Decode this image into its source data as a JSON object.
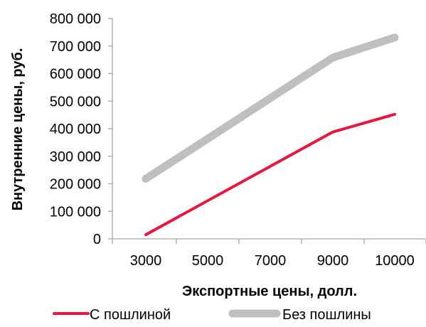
{
  "chart_data": {
    "type": "line",
    "xlabel": "Экспортные цены, долл.",
    "ylabel": "Внутренние цены, руб.",
    "x": [
      3000,
      9000,
      10000
    ],
    "x_ticks": [
      "3000",
      "5000",
      "7000",
      "9000",
      "10000"
    ],
    "y_ticks": [
      "0",
      "100 000",
      "200 000",
      "300 000",
      "400 000",
      "500 000",
      "600 000",
      "700 000",
      "800 000"
    ],
    "ylim": [
      0,
      800000
    ],
    "series": [
      {
        "name": "С пошлиной",
        "values": [
          15000,
          388000,
          452000
        ],
        "color": "#e8173f"
      },
      {
        "name": "Без пошлины",
        "values": [
          218000,
          658000,
          731000
        ],
        "color": "#bfbfbf"
      }
    ],
    "legend_position": "bottom",
    "grid": false
  }
}
